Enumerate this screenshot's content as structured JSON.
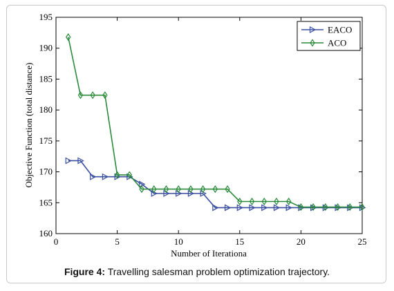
{
  "caption": {
    "label": "Figure 4:",
    "text": " Travelling salesman problem optimization trajectory."
  },
  "chart_data": {
    "type": "line",
    "xlabel": "Number of Iterationa",
    "ylabel": "Objective Function (total distance)",
    "xlim": [
      0,
      25
    ],
    "ylim": [
      160,
      195
    ],
    "xticks": [
      0,
      5,
      10,
      15,
      20,
      25
    ],
    "yticks": [
      160,
      165,
      170,
      175,
      180,
      185,
      190,
      195
    ],
    "grid": false,
    "legend_position": "top-right",
    "x": [
      1,
      2,
      3,
      4,
      5,
      6,
      7,
      8,
      9,
      10,
      11,
      12,
      13,
      14,
      15,
      16,
      17,
      18,
      19,
      20,
      21,
      22,
      23,
      24,
      25
    ],
    "series": [
      {
        "name": "EACO",
        "color": "#3a4fa0",
        "marker": "triangle-right",
        "values": [
          171.8,
          171.8,
          169.2,
          169.2,
          169.2,
          169.2,
          168.0,
          166.5,
          166.5,
          166.5,
          166.5,
          166.5,
          164.2,
          164.2,
          164.2,
          164.2,
          164.2,
          164.2,
          164.2,
          164.2,
          164.2,
          164.2,
          164.2,
          164.2,
          164.2
        ]
      },
      {
        "name": "ACO",
        "color": "#2a8a3a",
        "marker": "diamond",
        "values": [
          191.8,
          182.4,
          182.4,
          182.4,
          169.5,
          169.5,
          167.2,
          167.2,
          167.2,
          167.2,
          167.2,
          167.2,
          167.2,
          167.2,
          165.2,
          165.2,
          165.2,
          165.2,
          165.2,
          164.3,
          164.3,
          164.3,
          164.3,
          164.3,
          164.3
        ]
      }
    ]
  }
}
